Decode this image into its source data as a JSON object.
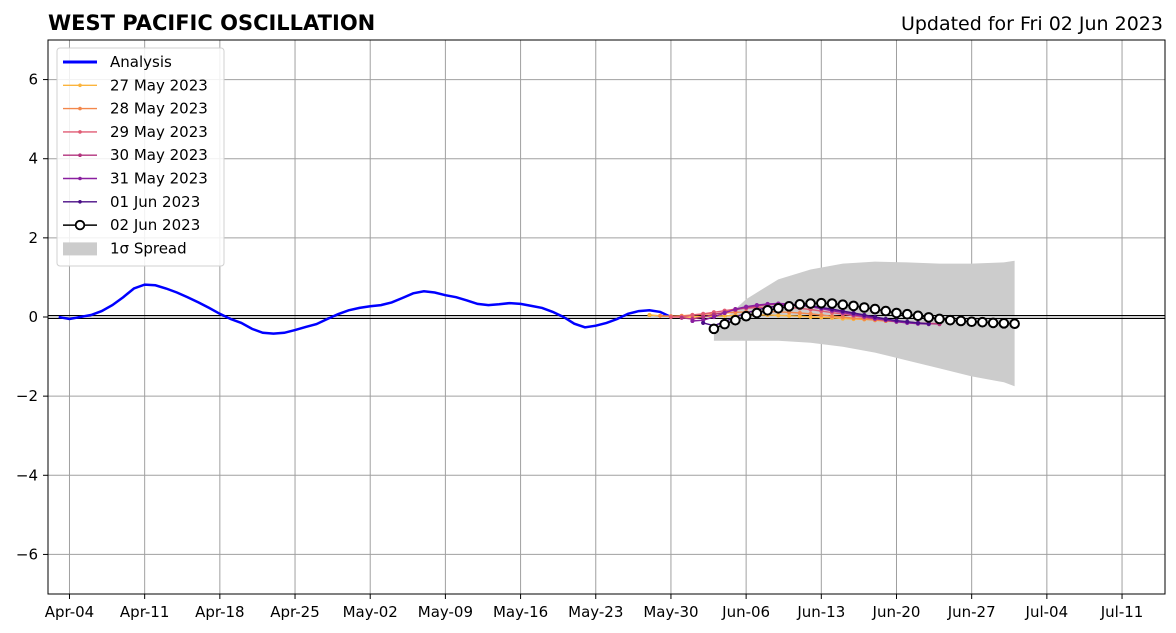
{
  "chart_data": {
    "type": "line",
    "title": "WEST PACIFIC OSCILLATION",
    "subtitle": "Updated for Fri 02 Jun 2023",
    "xlabel": "",
    "ylabel": "",
    "ylim": [
      -7,
      7
    ],
    "xlim": [
      "2023-04-02",
      "2023-07-15"
    ],
    "yticks": [
      -6,
      -4,
      -2,
      0,
      2,
      4,
      6
    ],
    "ytick_labels": [
      "−6",
      "−4",
      "−2",
      "0",
      "2",
      "4",
      "6"
    ],
    "xticks": [
      "2023-04-04",
      "2023-04-11",
      "2023-04-18",
      "2023-04-25",
      "2023-05-02",
      "2023-05-09",
      "2023-05-16",
      "2023-05-23",
      "2023-05-30",
      "2023-06-06",
      "2023-06-13",
      "2023-06-20",
      "2023-06-27",
      "2023-07-04",
      "2023-07-11"
    ],
    "xtick_labels": [
      "Apr-04",
      "Apr-11",
      "Apr-18",
      "Apr-25",
      "May-02",
      "May-09",
      "May-16",
      "May-23",
      "May-30",
      "Jun-06",
      "Jun-13",
      "Jun-20",
      "Jun-27",
      "Jul-04",
      "Jul-11"
    ],
    "grid": true,
    "legend_position": "top-left",
    "series": [
      {
        "name": "Analysis",
        "color": "#0000ff",
        "x": [
          "2023-04-03",
          "2023-04-04",
          "2023-04-05",
          "2023-04-06",
          "2023-04-07",
          "2023-04-08",
          "2023-04-09",
          "2023-04-10",
          "2023-04-11",
          "2023-04-12",
          "2023-04-13",
          "2023-04-14",
          "2023-04-15",
          "2023-04-16",
          "2023-04-17",
          "2023-04-18",
          "2023-04-19",
          "2023-04-20",
          "2023-04-21",
          "2023-04-22",
          "2023-04-23",
          "2023-04-24",
          "2023-04-25",
          "2023-04-26",
          "2023-04-27",
          "2023-04-28",
          "2023-04-29",
          "2023-04-30",
          "2023-05-01",
          "2023-05-02",
          "2023-05-03",
          "2023-05-04",
          "2023-05-05",
          "2023-05-06",
          "2023-05-07",
          "2023-05-08",
          "2023-05-09",
          "2023-05-10",
          "2023-05-11",
          "2023-05-12",
          "2023-05-13",
          "2023-05-14",
          "2023-05-15",
          "2023-05-16",
          "2023-05-17",
          "2023-05-18",
          "2023-05-19",
          "2023-05-20",
          "2023-05-21",
          "2023-05-22",
          "2023-05-23",
          "2023-05-24",
          "2023-05-25",
          "2023-05-26",
          "2023-05-27",
          "2023-05-28",
          "2023-05-29",
          "2023-05-30"
        ],
        "y": [
          0.0,
          -0.05,
          0.0,
          0.05,
          0.15,
          0.3,
          0.5,
          0.72,
          0.82,
          0.8,
          0.72,
          0.62,
          0.5,
          0.37,
          0.23,
          0.08,
          -0.05,
          -0.15,
          -0.3,
          -0.4,
          -0.42,
          -0.4,
          -0.33,
          -0.25,
          -0.18,
          -0.05,
          0.07,
          0.17,
          0.23,
          0.27,
          0.3,
          0.37,
          0.48,
          0.6,
          0.65,
          0.62,
          0.55,
          0.5,
          0.42,
          0.33,
          0.3,
          0.32,
          0.35,
          0.33,
          0.28,
          0.23,
          0.13,
          0.0,
          -0.17,
          -0.26,
          -0.22,
          -0.15,
          -0.05,
          0.08,
          0.15,
          0.17,
          0.13,
          0.0
        ]
      },
      {
        "name": "27 May 2023",
        "color": "#fbb43c",
        "start": "2023-05-28",
        "y": [
          0.05,
          0.03,
          0.01,
          0.0,
          0.0,
          0.01,
          0.02,
          0.03,
          0.04,
          0.05,
          0.05,
          0.05,
          0.04,
          0.03,
          0.02,
          0.0,
          -0.01,
          -0.02,
          -0.04,
          -0.05,
          -0.06,
          -0.07,
          -0.08
        ]
      },
      {
        "name": "28 May 2023",
        "color": "#f3874b",
        "start": "2023-05-29",
        "y": [
          0.03,
          0.02,
          0.03,
          0.05,
          0.07,
          0.08,
          0.1,
          0.12,
          0.13,
          0.14,
          0.14,
          0.13,
          0.12,
          0.1,
          0.08,
          0.05,
          0.02,
          0.0,
          -0.03,
          -0.05,
          -0.08,
          -0.1,
          -0.12,
          -0.14,
          -0.15
        ]
      },
      {
        "name": "29 May 2023",
        "color": "#e05b74",
        "start": "2023-05-30",
        "y": [
          0.0,
          0.0,
          0.05,
          0.08,
          0.12,
          0.16,
          0.2,
          0.22,
          0.24,
          0.25,
          0.25,
          0.24,
          0.22,
          0.19,
          0.15,
          0.11,
          0.07,
          0.03,
          -0.01,
          -0.05,
          -0.08,
          -0.11,
          -0.13,
          -0.15,
          -0.16,
          -0.17
        ]
      },
      {
        "name": "30 May 2023",
        "color": "#b2337e",
        "start": "2023-05-31",
        "y": [
          -0.02,
          -0.05,
          0.0,
          0.06,
          0.12,
          0.18,
          0.24,
          0.28,
          0.31,
          0.32,
          0.32,
          0.3,
          0.27,
          0.23,
          0.18,
          0.13,
          0.08,
          0.03,
          -0.02,
          -0.06,
          -0.1,
          -0.13,
          -0.15,
          -0.17,
          -0.18
        ]
      },
      {
        "name": "31 May 2023",
        "color": "#8a1fa0",
        "start": "2023-06-01",
        "y": [
          -0.1,
          -0.08,
          0.0,
          0.1,
          0.2,
          0.26,
          0.3,
          0.33,
          0.34,
          0.33,
          0.3,
          0.26,
          0.21,
          0.16,
          0.11,
          0.06,
          0.01,
          -0.04,
          -0.08,
          -0.12,
          -0.15,
          -0.17,
          -0.18
        ]
      },
      {
        "name": "01 Jun 2023",
        "color": "#4a0d86",
        "start": "2023-06-02",
        "y": [
          -0.15,
          -0.22,
          -0.12,
          0.0,
          0.1,
          0.18,
          0.24,
          0.28,
          0.3,
          0.3,
          0.28,
          0.24,
          0.2,
          0.15,
          0.1,
          0.05,
          0.0,
          -0.05,
          -0.09,
          -0.12,
          -0.15,
          -0.17
        ]
      },
      {
        "name": "02 Jun 2023",
        "color": "#000000",
        "start": "2023-06-03",
        "y": [
          -0.3,
          -0.18,
          -0.08,
          0.02,
          0.1,
          0.17,
          0.22,
          0.27,
          0.32,
          0.34,
          0.35,
          0.34,
          0.31,
          0.28,
          0.24,
          0.2,
          0.15,
          0.1,
          0.07,
          0.03,
          -0.01,
          -0.05,
          -0.08,
          -0.1,
          -0.12,
          -0.13,
          -0.15,
          -0.16,
          -0.17
        ]
      }
    ],
    "spread": {
      "name": "1σ Spread",
      "color": "#cccccc",
      "x": [
        "2023-06-03",
        "2023-06-06",
        "2023-06-09",
        "2023-06-12",
        "2023-06-15",
        "2023-06-18",
        "2023-06-21",
        "2023-06-24",
        "2023-06-27",
        "2023-06-30",
        "2023-07-01"
      ],
      "upper": [
        -0.3,
        0.45,
        0.95,
        1.2,
        1.35,
        1.4,
        1.38,
        1.35,
        1.35,
        1.38,
        1.42
      ],
      "lower": [
        -0.6,
        -0.6,
        -0.6,
        -0.65,
        -0.75,
        -0.9,
        -1.1,
        -1.3,
        -1.5,
        -1.65,
        -1.75
      ]
    }
  }
}
